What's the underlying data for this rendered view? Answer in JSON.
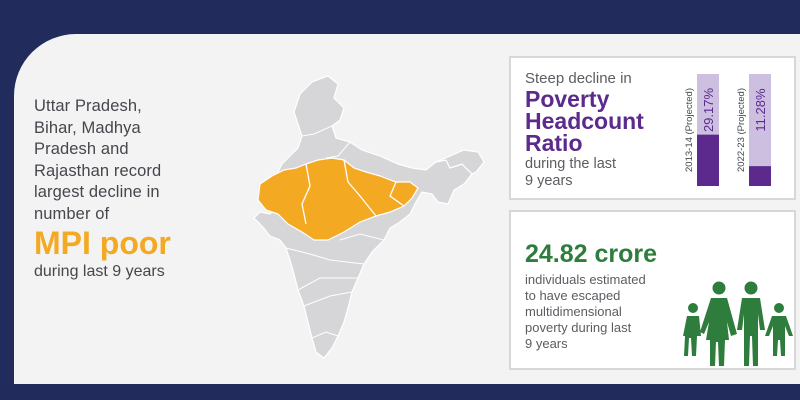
{
  "left_panel": {
    "text": "Uttar Pradesh,\nBihar, Madhya\nPradesh  and\nRajasthan record\nlargest decline in\nnumber of",
    "highlight": "MPI poor",
    "tail": "during last 9 years"
  },
  "map": {
    "icon": "india-map-icon",
    "highlight_color": "#f4a923",
    "base_color": "#d6d6d8"
  },
  "headcount_box": {
    "pre": "Steep decline in",
    "title": "Poverty\nHeadcount\nRatio",
    "post": "during the last\n9 years",
    "chart_data": {
      "type": "bar",
      "categories": [
        "2013-14 (Projected)",
        "2022-23 (Projected)"
      ],
      "values": [
        29.17,
        11.28
      ],
      "value_labels": [
        "29.17%",
        "11.28%"
      ],
      "colors": {
        "fill": "#5b2a8c",
        "track": "#cdbfe0"
      }
    }
  },
  "escape_box": {
    "number": "24.82 crore",
    "description": "individuals estimated\nto have escaped\nmultidimensional\npoverty during last\n9 years",
    "icon": "family-icon",
    "icon_color": "#2e7d3c"
  }
}
